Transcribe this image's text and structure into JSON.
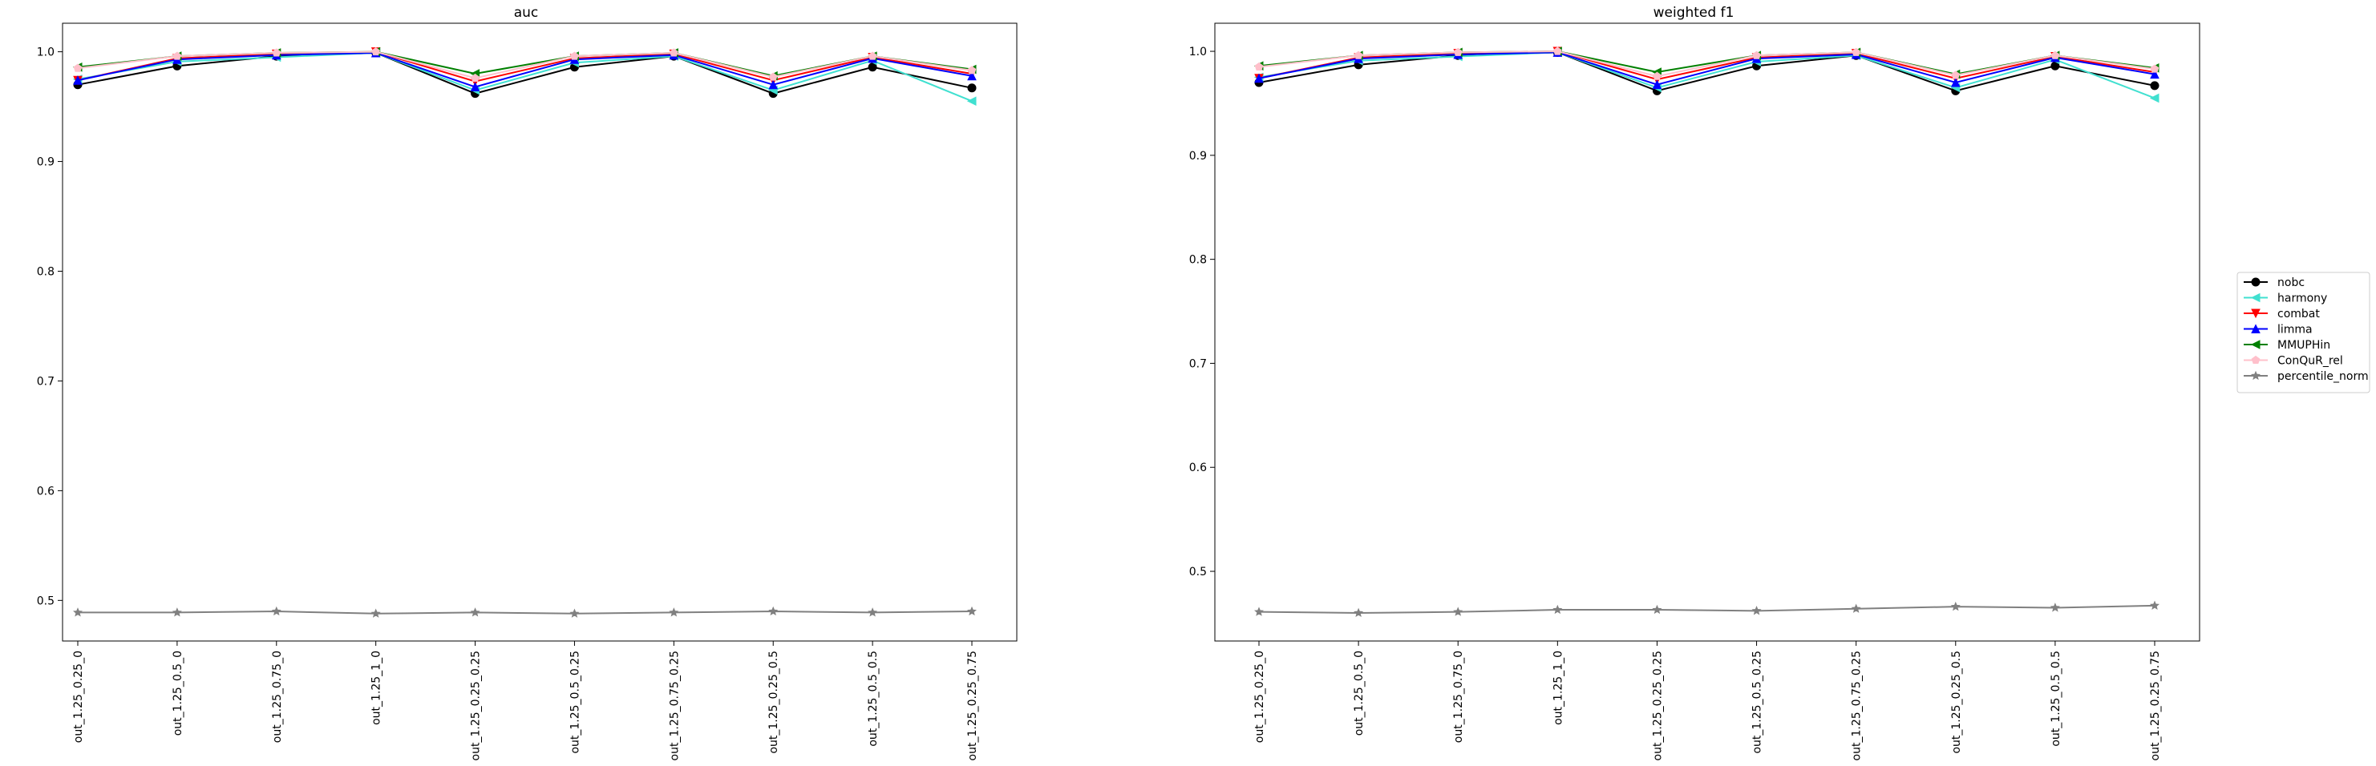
{
  "chart_data": [
    {
      "type": "line",
      "title": "auc",
      "xlabel": "",
      "ylabel": "",
      "categories": [
        "out_1.25_0.25_0",
        "out_1.25_0.5_0",
        "out_1.25_0.75_0",
        "out_1.25_1_0",
        "out_1.25_0.25_0.25",
        "out_1.25_0.5_0.25",
        "out_1.25_0.75_0.25",
        "out_1.25_0.25_0.5",
        "out_1.25_0.5_0.5",
        "out_1.25_0.25_0.75"
      ],
      "ylim": [
        0.463,
        1.026
      ],
      "yticks": [
        0.5,
        0.6,
        0.7,
        0.8,
        0.9,
        1.0
      ],
      "ytick_labels": [
        "0.5",
        "0.6",
        "0.7",
        "0.8",
        "0.9",
        "1.0"
      ],
      "grid": false,
      "series": [
        {
          "name": "nobc",
          "color": "#000000",
          "marker": "circle",
          "values": [
            0.97,
            0.987,
            0.996,
            0.999,
            0.962,
            0.986,
            0.996,
            0.962,
            0.986,
            0.967
          ]
        },
        {
          "name": "harmony",
          "color": "#40e0d0",
          "marker": "tri_left",
          "values": [
            0.975,
            0.991,
            0.995,
            0.999,
            0.965,
            0.99,
            0.996,
            0.965,
            0.992,
            0.955
          ]
        },
        {
          "name": "combat",
          "color": "#ff0000",
          "marker": "tri_down",
          "values": [
            0.974,
            0.994,
            0.998,
            1.0,
            0.973,
            0.994,
            0.998,
            0.974,
            0.995,
            0.98
          ]
        },
        {
          "name": "limma",
          "color": "#0000ff",
          "marker": "tri_up",
          "values": [
            0.974,
            0.993,
            0.997,
            0.999,
            0.968,
            0.993,
            0.997,
            0.97,
            0.994,
            0.978
          ]
        },
        {
          "name": "MMUPHin",
          "color": "#008000",
          "marker": "tri_left",
          "values": [
            0.986,
            0.996,
            0.999,
            1.0,
            0.98,
            0.996,
            0.999,
            0.978,
            0.996,
            0.984
          ]
        },
        {
          "name": "ConQuR_rel",
          "color": "#ffc0cb",
          "marker": "pentagon",
          "values": [
            0.985,
            0.996,
            0.999,
            1.0,
            0.976,
            0.996,
            0.999,
            0.977,
            0.996,
            0.983
          ]
        },
        {
          "name": "percentile_norm",
          "color": "#808080",
          "marker": "star",
          "values": [
            0.489,
            0.489,
            0.49,
            0.488,
            0.489,
            0.488,
            0.489,
            0.49,
            0.489,
            0.49
          ]
        }
      ]
    },
    {
      "type": "line",
      "title": "weighted f1",
      "xlabel": "",
      "ylabel": "",
      "categories": [
        "out_1.25_0.25_0",
        "out_1.25_0.5_0",
        "out_1.25_0.75_0",
        "out_1.25_1_0",
        "out_1.25_0.25_0.25",
        "out_1.25_0.5_0.25",
        "out_1.25_0.75_0.25",
        "out_1.25_0.25_0.5",
        "out_1.25_0.5_0.5",
        "out_1.25_0.25_0.75"
      ],
      "ylim": [
        0.433,
        1.027
      ],
      "yticks": [
        0.5,
        0.6,
        0.7,
        0.8,
        0.9,
        1.0
      ],
      "ytick_labels": [
        "0.5",
        "0.6",
        "0.7",
        "0.8",
        "0.9",
        "1.0"
      ],
      "grid": false,
      "series": [
        {
          "name": "nobc",
          "color": "#000000",
          "marker": "circle",
          "values": [
            0.97,
            0.987,
            0.996,
            0.999,
            0.962,
            0.986,
            0.996,
            0.962,
            0.986,
            0.967
          ]
        },
        {
          "name": "harmony",
          "color": "#40e0d0",
          "marker": "tri_left",
          "values": [
            0.975,
            0.991,
            0.995,
            0.999,
            0.965,
            0.99,
            0.996,
            0.965,
            0.992,
            0.955
          ]
        },
        {
          "name": "combat",
          "color": "#ff0000",
          "marker": "tri_down",
          "values": [
            0.974,
            0.994,
            0.998,
            1.0,
            0.973,
            0.994,
            0.998,
            0.974,
            0.995,
            0.98
          ]
        },
        {
          "name": "limma",
          "color": "#0000ff",
          "marker": "tri_up",
          "values": [
            0.974,
            0.993,
            0.997,
            0.999,
            0.968,
            0.993,
            0.997,
            0.97,
            0.994,
            0.978
          ]
        },
        {
          "name": "MMUPHin",
          "color": "#008000",
          "marker": "tri_left",
          "values": [
            0.986,
            0.996,
            0.999,
            1.0,
            0.98,
            0.996,
            0.999,
            0.978,
            0.996,
            0.984
          ]
        },
        {
          "name": "ConQuR_rel",
          "color": "#ffc0cb",
          "marker": "pentagon",
          "values": [
            0.985,
            0.996,
            0.999,
            1.0,
            0.976,
            0.996,
            0.999,
            0.977,
            0.996,
            0.983
          ]
        },
        {
          "name": "percentile_norm",
          "color": "#808080",
          "marker": "star",
          "values": [
            0.461,
            0.46,
            0.461,
            0.463,
            0.463,
            0.462,
            0.464,
            0.466,
            0.465,
            0.467
          ]
        }
      ]
    }
  ],
  "legend": {
    "placement": "right",
    "entries": [
      {
        "name": "nobc",
        "color": "#000000",
        "marker": "circle"
      },
      {
        "name": "harmony",
        "color": "#40e0d0",
        "marker": "tri_left"
      },
      {
        "name": "combat",
        "color": "#ff0000",
        "marker": "tri_down"
      },
      {
        "name": "limma",
        "color": "#0000ff",
        "marker": "tri_up"
      },
      {
        "name": "MMUPHin",
        "color": "#008000",
        "marker": "tri_left"
      },
      {
        "name": "ConQuR_rel",
        "color": "#ffc0cb",
        "marker": "pentagon"
      },
      {
        "name": "percentile_norm",
        "color": "#808080",
        "marker": "star"
      }
    ]
  }
}
